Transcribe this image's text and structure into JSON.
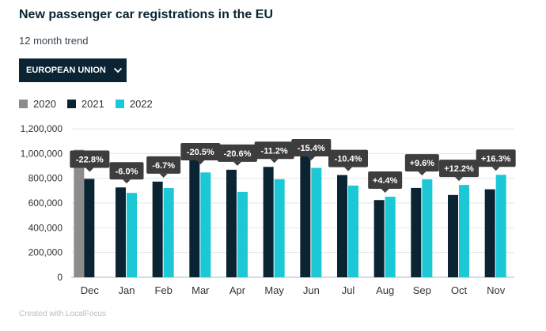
{
  "chart_data": {
    "type": "bar",
    "title": "New passenger car registrations in the EU",
    "subtitle": "12 month trend",
    "region_selector": "EUROPEAN UNION",
    "categories": [
      "Dec",
      "Jan",
      "Feb",
      "Mar",
      "Apr",
      "May",
      "Jun",
      "Jul",
      "Aug",
      "Sep",
      "Oct",
      "Nov"
    ],
    "series": [
      {
        "name": "2020",
        "color": "#8c8c8c",
        "values": [
          1030000,
          null,
          null,
          null,
          null,
          null,
          null,
          null,
          null,
          null,
          null,
          null
        ]
      },
      {
        "name": "2021",
        "color": "#0b2433",
        "values": [
          795000,
          726000,
          773000,
          1065000,
          869000,
          892000,
          1044000,
          826000,
          624000,
          722000,
          665000,
          711000
        ]
      },
      {
        "name": "2022",
        "color": "#1cc7d6",
        "values": [
          null,
          682000,
          721000,
          847000,
          690000,
          792000,
          884000,
          741000,
          651000,
          791000,
          746000,
          828000
        ]
      }
    ],
    "change_labels": [
      "-22.8%",
      "-6.0%",
      "-6.7%",
      "-20.5%",
      "-20.6%",
      "-11.2%",
      "-15.4%",
      "-10.4%",
      "+4.4%",
      "+9.6%",
      "+12.2%",
      "+16.3%"
    ],
    "y_ticks": [
      "0",
      "200,000",
      "400,000",
      "600,000",
      "800,000",
      "1,000,000",
      "1,200,000"
    ],
    "y_tick_values": [
      0,
      200000,
      400000,
      600000,
      800000,
      1000000,
      1200000
    ],
    "ylim": [
      0,
      1200000
    ],
    "xlabel": "",
    "ylabel": "",
    "grid": true,
    "legend_position": "top-left",
    "credit": "Created with LocalFocus"
  }
}
